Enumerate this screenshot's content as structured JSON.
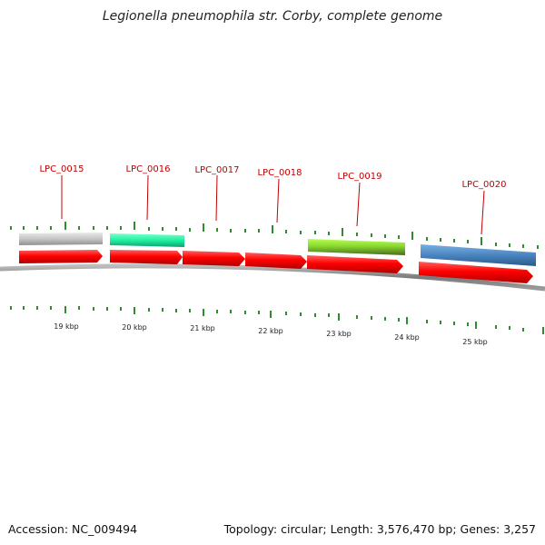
{
  "title": "Legionella pneumophila str. Corby, complete genome",
  "footer": {
    "accession": "Accession: NC_009494",
    "summary": "Topology: circular; Length: 3,576,470 bp; Genes: 3,257"
  },
  "colors": {
    "gene_feature": "#ff0000",
    "label_text": "#c00000",
    "tick": "#2e8b2e",
    "backbone": "#8a8a8a",
    "tracks": [
      "#c4c4c4",
      "#22f0a0",
      "#88d830",
      "#4a84c0"
    ]
  },
  "genes": [
    {
      "id": "LPC_0015",
      "label": "LPC_0015"
    },
    {
      "id": "LPC_0016",
      "label": "LPC_0016"
    },
    {
      "id": "LPC_0017",
      "label": "LPC_0017"
    },
    {
      "id": "LPC_0018",
      "label": "LPC_0018"
    },
    {
      "id": "LPC_0019",
      "label": "LPC_0019"
    },
    {
      "id": "LPC_0020",
      "label": "LPC_0020"
    }
  ],
  "scale_labels": [
    "19 kbp",
    "20 kbp",
    "21 kbp",
    "22 kbp",
    "23 kbp",
    "24 kbp",
    "25 kbp"
  ]
}
